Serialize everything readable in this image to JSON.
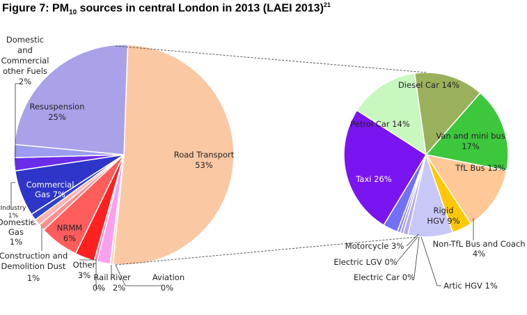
{
  "figure": {
    "title_prefix": "Figure 7: PM",
    "title_sub": "10",
    "title_rest": " sources in central London in 2013 (LAEI 2013)",
    "title_ref": "21"
  },
  "chart_data": [
    {
      "type": "pie",
      "slices": [
        {
          "name": "Road Transport",
          "value": 53,
          "label_lines": [
            "Road Transport",
            "53%"
          ],
          "color": "#FBC8A4"
        },
        {
          "name": "Aviation",
          "value": 0,
          "label_lines": [
            "Aviation",
            "0%"
          ],
          "color": "#F9D7B0"
        },
        {
          "name": "River",
          "value": 2,
          "label_lines": [
            "River",
            "2%"
          ],
          "color": "#F9A0F0"
        },
        {
          "name": "Rail",
          "value": 0,
          "label_lines": [
            "Rail",
            "0%"
          ],
          "color": "#F080B0"
        },
        {
          "name": "Other",
          "value": 3,
          "label_lines": [
            "Other",
            "3%"
          ],
          "color": "#FF2020"
        },
        {
          "name": "NRMM",
          "value": 6,
          "label_lines": [
            "NRMM",
            "6%"
          ],
          "color": "#FF5C5C"
        },
        {
          "name": "Construction and Demolition Dust",
          "value": 1,
          "label_lines": [
            "Construction and",
            "Demolition Dust",
            "1%"
          ],
          "color": "#FF8F8F"
        },
        {
          "name": "Domestic Gas",
          "value": 1,
          "label_lines": [
            "Domestic",
            "Gas",
            "1%"
          ],
          "color": "#FFB3B3"
        },
        {
          "name": "Industry",
          "value": 1,
          "label_lines": [
            "Industry",
            "1%"
          ],
          "color": "#3040D0"
        },
        {
          "name": "Commercial Gas",
          "value": 7,
          "label_lines": [
            "Commercial",
            "Gas 7%"
          ],
          "color": "#2E35C8"
        },
        {
          "name": "Commercial Gas (2)",
          "value": 2,
          "label_lines": [],
          "color": "#6A2CE8"
        },
        {
          "name": "Domestic and Commercial other Fuels",
          "value": 2,
          "label_lines": [
            "Domestic",
            "and",
            "Commercial",
            "other Fuels",
            "2%"
          ],
          "color": "#9C9CF0"
        },
        {
          "name": "Resuspension",
          "value": 25,
          "label_lines": [
            "Resuspension",
            "25%"
          ],
          "color": "#A9A2E8"
        }
      ]
    },
    {
      "type": "pie",
      "slices": [
        {
          "name": "Diesel Car",
          "value": 14,
          "label_lines": [
            "Diesel Car 14%"
          ],
          "color": "#9BB05A"
        },
        {
          "name": "Van and mini bus",
          "value": 17,
          "label_lines": [
            "Van and mini bus",
            "17%"
          ],
          "color": "#3CC83C"
        },
        {
          "name": "TfL Bus",
          "value": 13,
          "label_lines": [
            "TfL Bus 13%"
          ],
          "color": "#FFC896"
        },
        {
          "name": "Non-TfL Bus and Coach",
          "value": 4,
          "label_lines": [
            "Non-TfL Bus and Coach",
            "4%"
          ],
          "color": "#FFC800"
        },
        {
          "name": "Rigid HGV",
          "value": 9,
          "label_lines": [
            "Rigid",
            "HGV 9%"
          ],
          "color": "#C8C8F8"
        },
        {
          "name": "Artic HGV",
          "value": 1,
          "label_lines": [
            "Artic HGV 1%"
          ],
          "color": "#B8A8F0"
        },
        {
          "name": "Electric Car",
          "value": 0,
          "label_lines": [
            "Electric Car 0%"
          ],
          "color": "#A0A0F0"
        },
        {
          "name": "Electric LGV",
          "value": 0,
          "label_lines": [
            "Electric LGV 0%"
          ],
          "color": "#8888F0"
        },
        {
          "name": "Motorcycle",
          "value": 3,
          "label_lines": [
            "Motorcycle 3%"
          ],
          "color": "#7070F8"
        },
        {
          "name": "Taxi",
          "value": 26,
          "label_lines": [
            "Taxi 26%"
          ],
          "color": "#7A14F0"
        },
        {
          "name": "Petrol Car",
          "value": 14,
          "label_lines": [
            "Petrol Car 14%"
          ],
          "color": "#C8F8C0"
        }
      ]
    }
  ]
}
